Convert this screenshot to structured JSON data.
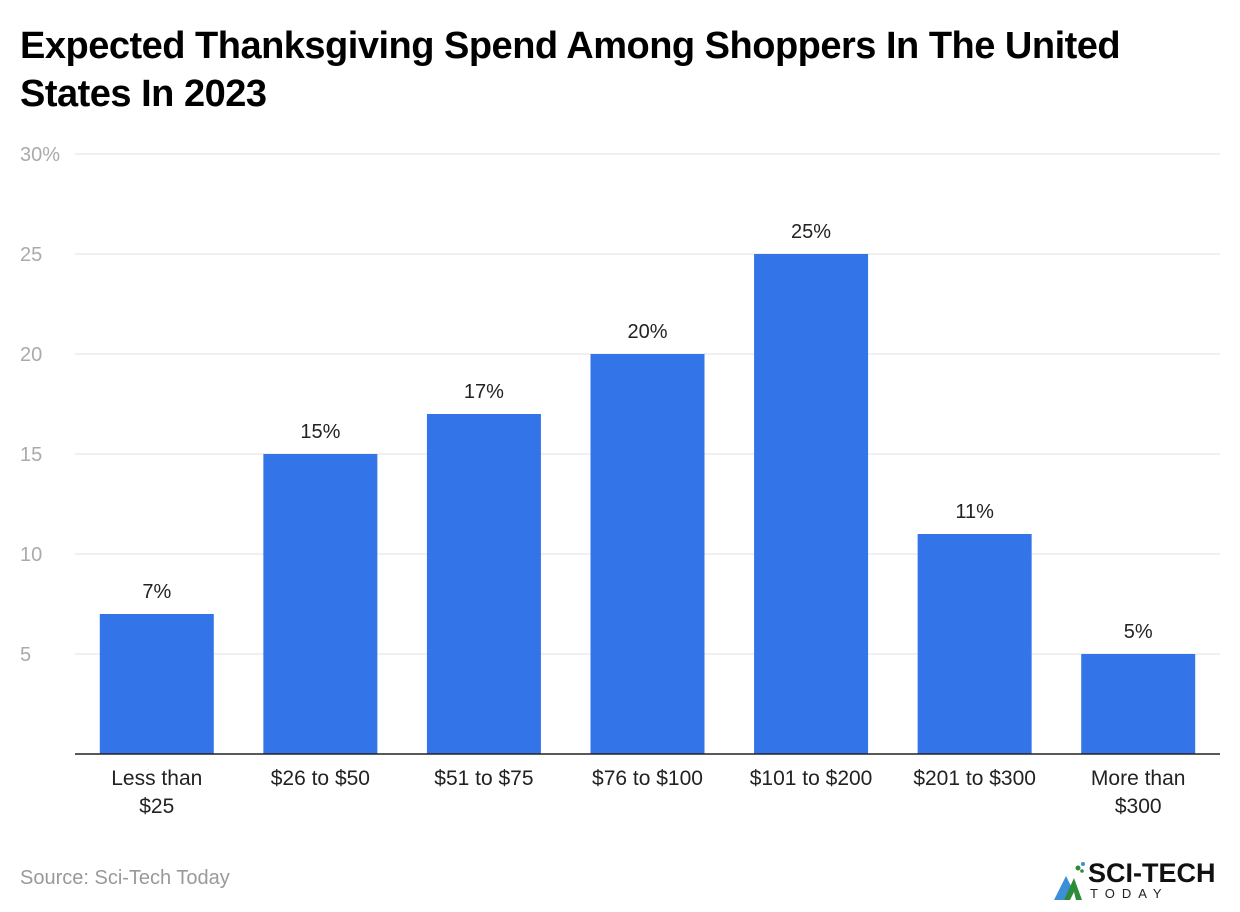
{
  "chart_data": {
    "type": "bar",
    "title": "Expected Thanksgiving Spend Among Shoppers In The United States In 2023",
    "categories": [
      [
        "Less than",
        "$25"
      ],
      [
        "$26 to $50"
      ],
      [
        "$51 to $75"
      ],
      [
        "$76 to $100"
      ],
      [
        "$101 to $200"
      ],
      [
        "$201 to $300"
      ],
      [
        "More than",
        "$300"
      ]
    ],
    "values": [
      7,
      15,
      17,
      20,
      25,
      11,
      5
    ],
    "data_labels": [
      "7%",
      "15%",
      "17%",
      "20%",
      "25%",
      "11%",
      "5%"
    ],
    "yticks": [
      5,
      10,
      15,
      20,
      25,
      30
    ],
    "ytick_labels": [
      "5",
      "10",
      "15",
      "20",
      "25",
      "30%"
    ],
    "ylim": [
      0,
      30
    ],
    "xlabel": "",
    "ylabel": "",
    "grid": true,
    "bar_color": "#3375e8"
  },
  "source": "Source: Sci-Tech Today",
  "logo": {
    "main": "SCI-TECH",
    "sub": "TODAY"
  }
}
